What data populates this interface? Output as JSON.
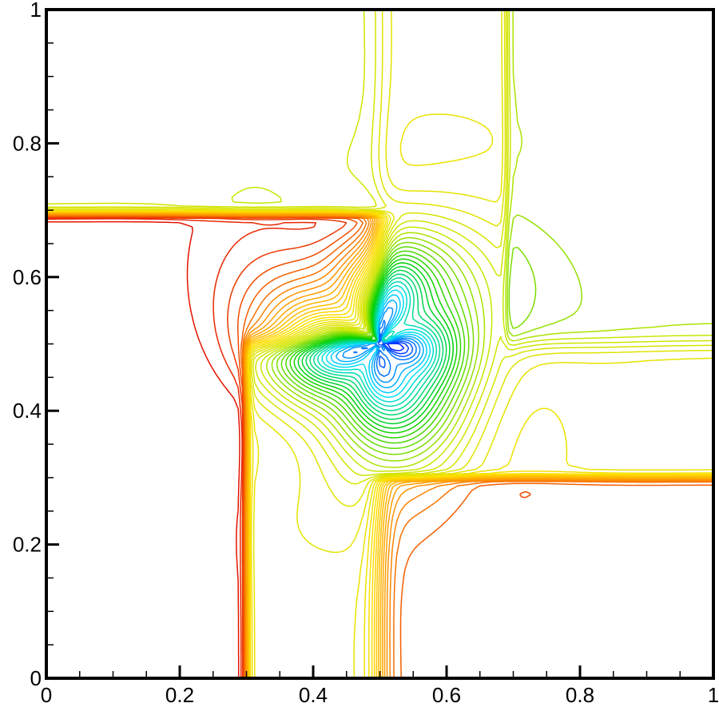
{
  "chart_data": {
    "type": "contour",
    "title": "",
    "xlabel": "",
    "ylabel": "",
    "xlim": [
      0,
      1
    ],
    "ylim": [
      0,
      1
    ],
    "grid": false,
    "legend": "none",
    "x_ticks": [
      "0",
      "0.2",
      "0.4",
      "0.6",
      "0.8",
      "1"
    ],
    "y_ticks": [
      "0",
      "0.2",
      "0.4",
      "0.6",
      "0.8",
      "1"
    ],
    "colormap": [
      "#0000ff",
      "#00e0ff",
      "#00d000",
      "#c8e600",
      "#ffe000",
      "#ff9000",
      "#e00000"
    ],
    "features": {
      "vortex_center": [
        0.5,
        0.5
      ],
      "horizontal_front_upper": {
        "y": 0.695,
        "x_range": [
          0.0,
          0.5
        ]
      },
      "horizontal_front_lower": {
        "y": 0.3,
        "x_range": [
          0.5,
          1.0
        ]
      },
      "vertical_front_left": {
        "x": 0.3,
        "y_range": [
          0.0,
          0.5
        ]
      },
      "vertical_front_right": {
        "x": 0.69,
        "y_range": [
          0.5,
          1.0
        ]
      }
    }
  }
}
